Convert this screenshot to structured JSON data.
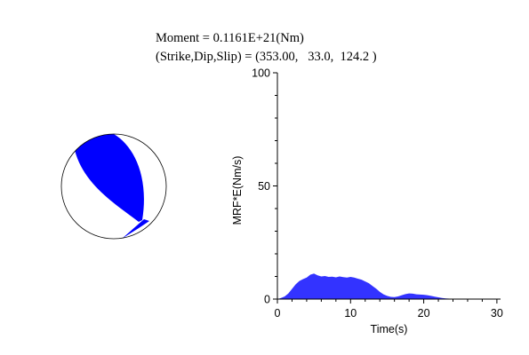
{
  "header": {
    "moment_line": "Moment = 0.1161E+21(Nm)",
    "mechanism_line": "(Strike,Dip,Slip) = (353.00,   33.0,  124.2 )"
  },
  "colors": {
    "beachball_fill": "#0000ff",
    "area_fill": "#3333ff",
    "outline": "#000000"
  },
  "beachball": {
    "strike": 353.0,
    "dip": 33.0,
    "slip": 124.2
  },
  "chart_data": {
    "type": "area",
    "xlabel": "Time(s)",
    "ylabel": "MRF*E(Nm/s)",
    "xlim": [
      0,
      30.5
    ],
    "ylim": [
      0,
      100
    ],
    "xticks": [
      0,
      10,
      20,
      30
    ],
    "yticks": [
      0,
      50,
      100
    ],
    "grid": false,
    "series": [
      {
        "x": [
          0,
          0.5,
          1,
          1.5,
          2,
          2.5,
          3,
          3.5,
          4,
          4.5,
          5,
          5.5,
          6,
          6.5,
          7,
          7.5,
          8,
          8.5,
          9,
          9.5,
          10,
          10.5,
          11,
          11.5,
          12,
          12.5,
          13,
          13.5,
          14,
          14.5,
          15,
          15.5,
          16,
          16.5,
          17,
          17.5,
          18,
          18.5,
          19,
          19.5,
          20,
          20.5,
          21,
          21.5,
          22,
          22.5,
          23,
          23.5,
          24,
          25,
          26,
          27,
          28,
          29,
          30
        ],
        "y": [
          0,
          0.5,
          1.2,
          2.5,
          4.5,
          6.5,
          8.0,
          8.8,
          9.5,
          10.8,
          11.3,
          10.5,
          10.0,
          10.2,
          9.8,
          9.9,
          9.6,
          10.0,
          9.7,
          9.5,
          9.8,
          9.5,
          9.0,
          8.6,
          7.8,
          7.0,
          5.8,
          4.6,
          3.2,
          2.1,
          1.4,
          1.0,
          0.9,
          1.2,
          1.7,
          2.2,
          2.5,
          2.4,
          2.1,
          2.0,
          1.9,
          1.7,
          1.4,
          1.1,
          0.8,
          0.5,
          0.3,
          0.2,
          0.1,
          0.05,
          0.03,
          0.02,
          0.01,
          0,
          0
        ]
      }
    ]
  }
}
